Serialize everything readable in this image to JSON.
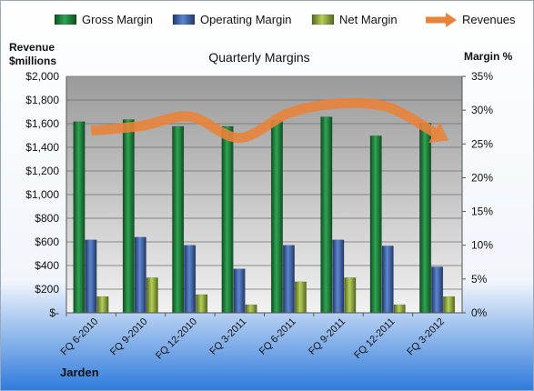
{
  "chart_data": {
    "type": "bar",
    "title": "Quarterly Margins",
    "footer_label": "Jarden",
    "left_axis_title_line1": "Revenue",
    "left_axis_title_line2": "$millions",
    "right_axis_title": "Margin %",
    "categories": [
      "FQ 6-2010",
      "FQ 9-2010",
      "FQ 12-2010",
      "FQ 3-2011",
      "FQ 6-2011",
      "FQ 9-2011",
      "FQ 12-2011",
      "FQ 3-2012"
    ],
    "left_axis": {
      "min": 0,
      "max": 2000,
      "step": 200,
      "tick_labels": [
        "$-",
        "$200",
        "$400",
        "$600",
        "$800",
        "$1,000",
        "$1,200",
        "$1,400",
        "$1,600",
        "$1,800",
        "$2,000"
      ]
    },
    "right_axis": {
      "min": 0,
      "max": 35,
      "step": 5,
      "tick_labels": [
        "0%",
        "5%",
        "10%",
        "15%",
        "20%",
        "25%",
        "30%",
        "35%"
      ]
    },
    "series": [
      {
        "name": "Gross Margin",
        "kind": "bar",
        "axis": "right",
        "color": "#1e7a3c",
        "values": [
          28.3,
          28.6,
          27.6,
          27.6,
          28.5,
          29.0,
          26.2,
          28.1
        ]
      },
      {
        "name": "Operating Margin",
        "kind": "bar",
        "axis": "right",
        "color": "#3b5fa6",
        "values": [
          10.8,
          11.2,
          10.0,
          6.5,
          10.0,
          10.8,
          9.9,
          6.8
        ]
      },
      {
        "name": "Net Margin",
        "kind": "bar",
        "axis": "right",
        "color": "#8aa63a",
        "values": [
          2.4,
          5.2,
          2.7,
          1.2,
          4.6,
          5.2,
          1.2,
          2.4
        ]
      },
      {
        "name": "Revenues",
        "kind": "line",
        "axis": "left",
        "color": "#e8833a",
        "values": [
          1540,
          1580,
          1660,
          1480,
          1690,
          1770,
          1740,
          1510
        ]
      }
    ],
    "legend_position": "top",
    "grid": true
  }
}
